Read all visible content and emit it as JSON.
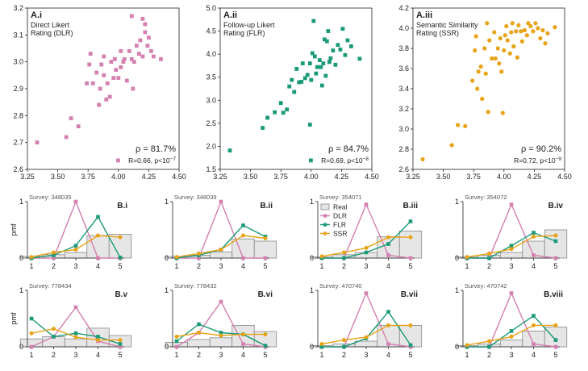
{
  "colors": {
    "dlr": "#d47fb0",
    "flr": "#1a9a78",
    "ssr": "#e8a317",
    "real_fill": "#e6e6e6",
    "real_stroke": "#888888"
  },
  "chart_data": [
    {
      "id": "A.i",
      "type": "scatter",
      "letter": "A.i",
      "title_lines": [
        "Direct Likert",
        "Rating (DLR)"
      ],
      "color_key": "dlr",
      "marker": "square",
      "xlim": [
        3.25,
        4.5
      ],
      "ylim": [
        2.6,
        3.2
      ],
      "xticks": [
        "3.25",
        "3.50",
        "3.75",
        "4.00",
        "4.25",
        "4.50"
      ],
      "yticks": [
        "2.6",
        "2.7",
        "2.8",
        "2.9",
        "3.0",
        "3.1",
        "3.2"
      ],
      "stat_rho": "ρ = 81.7%",
      "stat_r": "R=0.66, p<10",
      "stat_exp": "−7",
      "points": [
        [
          3.33,
          2.7
        ],
        [
          3.57,
          2.72
        ],
        [
          3.61,
          2.79
        ],
        [
          3.67,
          2.76
        ],
        [
          3.74,
          2.92
        ],
        [
          3.76,
          2.99
        ],
        [
          3.77,
          3.03
        ],
        [
          3.79,
          2.92
        ],
        [
          3.82,
          2.96
        ],
        [
          3.84,
          2.84
        ],
        [
          3.85,
          2.9
        ],
        [
          3.86,
          2.99
        ],
        [
          3.88,
          2.95
        ],
        [
          3.88,
          3.02
        ],
        [
          3.9,
          2.86
        ],
        [
          3.91,
          2.92
        ],
        [
          3.93,
          2.87
        ],
        [
          3.94,
          3.0
        ],
        [
          3.96,
          2.94
        ],
        [
          3.97,
          3.01
        ],
        [
          3.98,
          2.97
        ],
        [
          4.0,
          2.94
        ],
        [
          4.02,
          2.98
        ],
        [
          4.02,
          3.04
        ],
        [
          4.04,
          3.0
        ],
        [
          4.05,
          3.01
        ],
        [
          4.07,
          2.93
        ],
        [
          4.09,
          3.04
        ],
        [
          4.11,
          3.01
        ],
        [
          4.12,
          2.9
        ],
        [
          4.13,
          3.0
        ],
        [
          4.15,
          3.06
        ],
        [
          4.17,
          3.03
        ],
        [
          4.18,
          3.08
        ],
        [
          4.2,
          3.02
        ],
        [
          4.22,
          3.11
        ],
        [
          4.24,
          3.06
        ],
        [
          4.25,
          3.09
        ],
        [
          4.27,
          3.04
        ],
        [
          4.29,
          3.02
        ],
        [
          4.35,
          3.01
        ],
        [
          4.11,
          3.17
        ],
        [
          4.2,
          3.16
        ],
        [
          4.22,
          3.14
        ]
      ]
    },
    {
      "id": "A.ii",
      "type": "scatter",
      "letter": "A.ii",
      "title_lines": [
        "Follow-up Likert",
        "Rating (FLR)"
      ],
      "color_key": "flr",
      "marker": "square",
      "xlim": [
        3.25,
        4.5
      ],
      "ylim": [
        1.5,
        5.0
      ],
      "xticks": [
        "3.25",
        "3.50",
        "3.75",
        "4.00",
        "4.25",
        "4.50"
      ],
      "yticks": [
        "1.5",
        "2.0",
        "2.5",
        "3.0",
        "3.5",
        "4.0",
        "4.5",
        "5.0"
      ],
      "stat_rho": "ρ = 84.7%",
      "stat_r": "R=0.69, p<10",
      "stat_exp": "−8",
      "points": [
        [
          3.33,
          1.91
        ],
        [
          3.6,
          2.4
        ],
        [
          3.64,
          2.62
        ],
        [
          3.7,
          2.74
        ],
        [
          3.75,
          2.94
        ],
        [
          3.77,
          2.73
        ],
        [
          3.8,
          2.8
        ],
        [
          3.82,
          3.3
        ],
        [
          3.84,
          3.44
        ],
        [
          3.86,
          3.18
        ],
        [
          3.88,
          3.68
        ],
        [
          3.9,
          3.39
        ],
        [
          3.92,
          3.4
        ],
        [
          3.93,
          3.8
        ],
        [
          3.95,
          3.48
        ],
        [
          3.97,
          3.55
        ],
        [
          3.99,
          3.8
        ],
        [
          3.99,
          2.47
        ],
        [
          4.0,
          3.44
        ],
        [
          4.01,
          4.02
        ],
        [
          4.02,
          4.72
        ],
        [
          4.03,
          3.95
        ],
        [
          4.04,
          3.58
        ],
        [
          4.05,
          3.72
        ],
        [
          4.07,
          3.87
        ],
        [
          4.08,
          3.72
        ],
        [
          4.09,
          3.32
        ],
        [
          4.1,
          3.8
        ],
        [
          4.11,
          4.32
        ],
        [
          4.12,
          3.53
        ],
        [
          4.13,
          4.28
        ],
        [
          4.14,
          4.5
        ],
        [
          4.15,
          3.83
        ],
        [
          4.16,
          3.91
        ],
        [
          4.18,
          4.08
        ],
        [
          4.2,
          3.77
        ],
        [
          4.22,
          4.2
        ],
        [
          4.24,
          4.1
        ],
        [
          4.26,
          4.55
        ],
        [
          4.28,
          3.98
        ],
        [
          4.3,
          4.3
        ],
        [
          4.33,
          4.17
        ],
        [
          4.4,
          3.9
        ]
      ]
    },
    {
      "id": "A.iii",
      "type": "scatter",
      "letter": "A.iii",
      "title_lines": [
        "Semantic Similarity",
        "Rating (SSR)"
      ],
      "color_key": "ssr",
      "marker": "circle",
      "xlim": [
        3.25,
        4.5
      ],
      "ylim": [
        2.6,
        4.2
      ],
      "xticks": [
        "3.25",
        "3.50",
        "3.75",
        "4.00",
        "4.25",
        "4.50"
      ],
      "yticks": [
        "2.6",
        "2.8",
        "3.0",
        "3.2",
        "3.4",
        "3.6",
        "3.8",
        "4.0",
        "4.2"
      ],
      "stat_rho": "ρ = 90.2%",
      "stat_r": "R=0.72, p<10",
      "stat_exp": "−9",
      "points": [
        [
          3.33,
          2.7
        ],
        [
          3.57,
          2.84
        ],
        [
          3.62,
          3.04
        ],
        [
          3.68,
          3.03
        ],
        [
          3.74,
          3.48
        ],
        [
          3.76,
          3.78
        ],
        [
          3.77,
          3.92
        ],
        [
          3.78,
          3.4
        ],
        [
          3.79,
          3.57
        ],
        [
          3.81,
          3.62
        ],
        [
          3.82,
          3.3
        ],
        [
          3.84,
          3.8
        ],
        [
          3.85,
          3.55
        ],
        [
          3.86,
          4.05
        ],
        [
          3.87,
          3.17
        ],
        [
          3.88,
          3.88
        ],
        [
          3.9,
          3.7
        ],
        [
          3.92,
          3.96
        ],
        [
          3.93,
          3.7
        ],
        [
          3.95,
          3.8
        ],
        [
          3.96,
          3.65
        ],
        [
          3.97,
          3.9
        ],
        [
          3.98,
          3.57
        ],
        [
          3.99,
          3.16
        ],
        [
          4.0,
          3.78
        ],
        [
          4.01,
          3.93
        ],
        [
          4.02,
          4.02
        ],
        [
          4.03,
          3.88
        ],
        [
          4.05,
          3.75
        ],
        [
          4.06,
          3.96
        ],
        [
          4.07,
          4.05
        ],
        [
          4.08,
          3.82
        ],
        [
          4.1,
          3.97
        ],
        [
          4.11,
          3.71
        ],
        [
          4.12,
          4.03
        ],
        [
          4.14,
          3.97
        ],
        [
          4.15,
          3.87
        ],
        [
          4.17,
          3.98
        ],
        [
          4.19,
          3.93
        ],
        [
          4.2,
          4.05
        ],
        [
          4.22,
          4.02
        ],
        [
          4.24,
          3.97
        ],
        [
          4.26,
          4.05
        ],
        [
          4.28,
          4.0
        ],
        [
          4.3,
          3.9
        ],
        [
          4.32,
          3.98
        ],
        [
          4.34,
          3.85
        ],
        [
          4.36,
          3.95
        ],
        [
          4.42,
          4.01
        ]
      ]
    },
    {
      "id": "B.i",
      "type": "line",
      "letter": "B.i",
      "survey": "Survey: 348035",
      "categories": [
        "1",
        "2",
        "3",
        "4",
        "5"
      ],
      "ylim": [
        0,
        1
      ],
      "yticks": [
        "0",
        "1"
      ],
      "ylabel": "pmf",
      "real": [
        0.03,
        0.06,
        0.1,
        0.4,
        0.42
      ],
      "dlr": [
        0.0,
        0.0,
        1.0,
        0.0,
        0.0
      ],
      "flr": [
        0.0,
        0.05,
        0.22,
        0.73,
        0.01
      ],
      "ssr": [
        0.02,
        0.1,
        0.15,
        0.4,
        0.37
      ]
    },
    {
      "id": "B.ii",
      "type": "line",
      "letter": "B.ii",
      "survey": "Survey: 348039",
      "categories": [
        "1",
        "2",
        "3",
        "4",
        "5"
      ],
      "ylim": [
        0,
        1
      ],
      "yticks": [
        "0",
        "1"
      ],
      "ylabel": "",
      "real": [
        0.03,
        0.05,
        0.11,
        0.34,
        0.3
      ],
      "dlr": [
        0.0,
        0.0,
        1.0,
        0.0,
        0.0
      ],
      "flr": [
        0.0,
        0.05,
        0.15,
        0.58,
        0.38
      ],
      "ssr": [
        0.02,
        0.08,
        0.15,
        0.4,
        0.35
      ]
    },
    {
      "id": "B.iii",
      "type": "line",
      "letter": "B.iii",
      "survey": "Survey: 354071",
      "categories": [
        "1",
        "2",
        "3",
        "4",
        "5"
      ],
      "ylim": [
        0,
        1
      ],
      "yticks": [
        "0",
        "1"
      ],
      "ylabel": "",
      "real": [
        0.02,
        0.06,
        0.1,
        0.38,
        0.48
      ],
      "dlr": [
        0.0,
        0.0,
        0.95,
        0.05,
        0.0
      ],
      "flr": [
        0.0,
        0.0,
        0.1,
        0.25,
        0.65
      ],
      "ssr": [
        0.03,
        0.1,
        0.18,
        0.37,
        0.37
      ],
      "legend": [
        "Real",
        "DLR",
        "FLR",
        "SSR"
      ]
    },
    {
      "id": "B.iv",
      "type": "line",
      "letter": "B.iv",
      "survey": "Survey: 354072",
      "categories": [
        "1",
        "2",
        "3",
        "4",
        "5"
      ],
      "ylim": [
        0,
        1
      ],
      "yticks": [
        "0",
        "1"
      ],
      "ylabel": "",
      "real": [
        0.02,
        0.05,
        0.1,
        0.3,
        0.5
      ],
      "dlr": [
        0.0,
        0.0,
        0.95,
        0.05,
        0.0
      ],
      "flr": [
        0.0,
        0.0,
        0.22,
        0.45,
        0.3
      ],
      "ssr": [
        0.02,
        0.08,
        0.16,
        0.38,
        0.4
      ]
    },
    {
      "id": "B.v",
      "type": "line",
      "letter": "B.v",
      "survey": "Survey: 778434",
      "categories": [
        "1",
        "2",
        "3",
        "4",
        "5"
      ],
      "ylim": [
        0,
        1
      ],
      "yticks": [
        "0",
        "1"
      ],
      "ylabel": "pmf",
      "real": [
        0.14,
        0.18,
        0.14,
        0.33,
        0.2
      ],
      "dlr": [
        0.0,
        0.18,
        0.7,
        0.1,
        0.0
      ],
      "flr": [
        0.5,
        0.18,
        0.24,
        0.18,
        0.05
      ],
      "ssr": [
        0.24,
        0.32,
        0.17,
        0.12,
        0.12
      ]
    },
    {
      "id": "B.vi",
      "type": "line",
      "letter": "B.vi",
      "survey": "Survey: 778432",
      "categories": [
        "1",
        "2",
        "3",
        "4",
        "5"
      ],
      "ylim": [
        0,
        1
      ],
      "yticks": [
        "0",
        "1"
      ],
      "ylabel": "",
      "real": [
        0.08,
        0.13,
        0.16,
        0.38,
        0.27
      ],
      "dlr": [
        0.0,
        0.25,
        0.8,
        0.05,
        0.0
      ],
      "flr": [
        0.1,
        0.4,
        0.25,
        0.22,
        0.02
      ],
      "ssr": [
        0.18,
        0.25,
        0.2,
        0.22,
        0.22
      ]
    },
    {
      "id": "B.vii",
      "type": "line",
      "letter": "B.vii",
      "survey": "Survey: 470740",
      "categories": [
        "1",
        "2",
        "3",
        "4",
        "5"
      ],
      "ylim": [
        0,
        1
      ],
      "yticks": [
        "0",
        "1"
      ],
      "ylabel": "",
      "real": [
        0.02,
        0.05,
        0.1,
        0.38,
        0.38
      ],
      "dlr": [
        0.0,
        0.0,
        0.95,
        0.05,
        0.0
      ],
      "flr": [
        0.0,
        0.0,
        0.15,
        0.62,
        0.03
      ],
      "ssr": [
        0.05,
        0.12,
        0.17,
        0.38,
        0.38
      ]
    },
    {
      "id": "B.viii",
      "type": "line",
      "letter": "B.viii",
      "survey": "Survey: 470742",
      "categories": [
        "1",
        "2",
        "3",
        "4",
        "5"
      ],
      "ylim": [
        0,
        1
      ],
      "yticks": [
        "0",
        "1"
      ],
      "ylabel": "",
      "real": [
        0.02,
        0.05,
        0.12,
        0.28,
        0.35
      ],
      "dlr": [
        0.0,
        0.0,
        0.95,
        0.05,
        0.0
      ],
      "flr": [
        0.0,
        0.0,
        0.28,
        0.55,
        0.12
      ],
      "ssr": [
        0.03,
        0.1,
        0.18,
        0.38,
        0.38
      ]
    }
  ]
}
